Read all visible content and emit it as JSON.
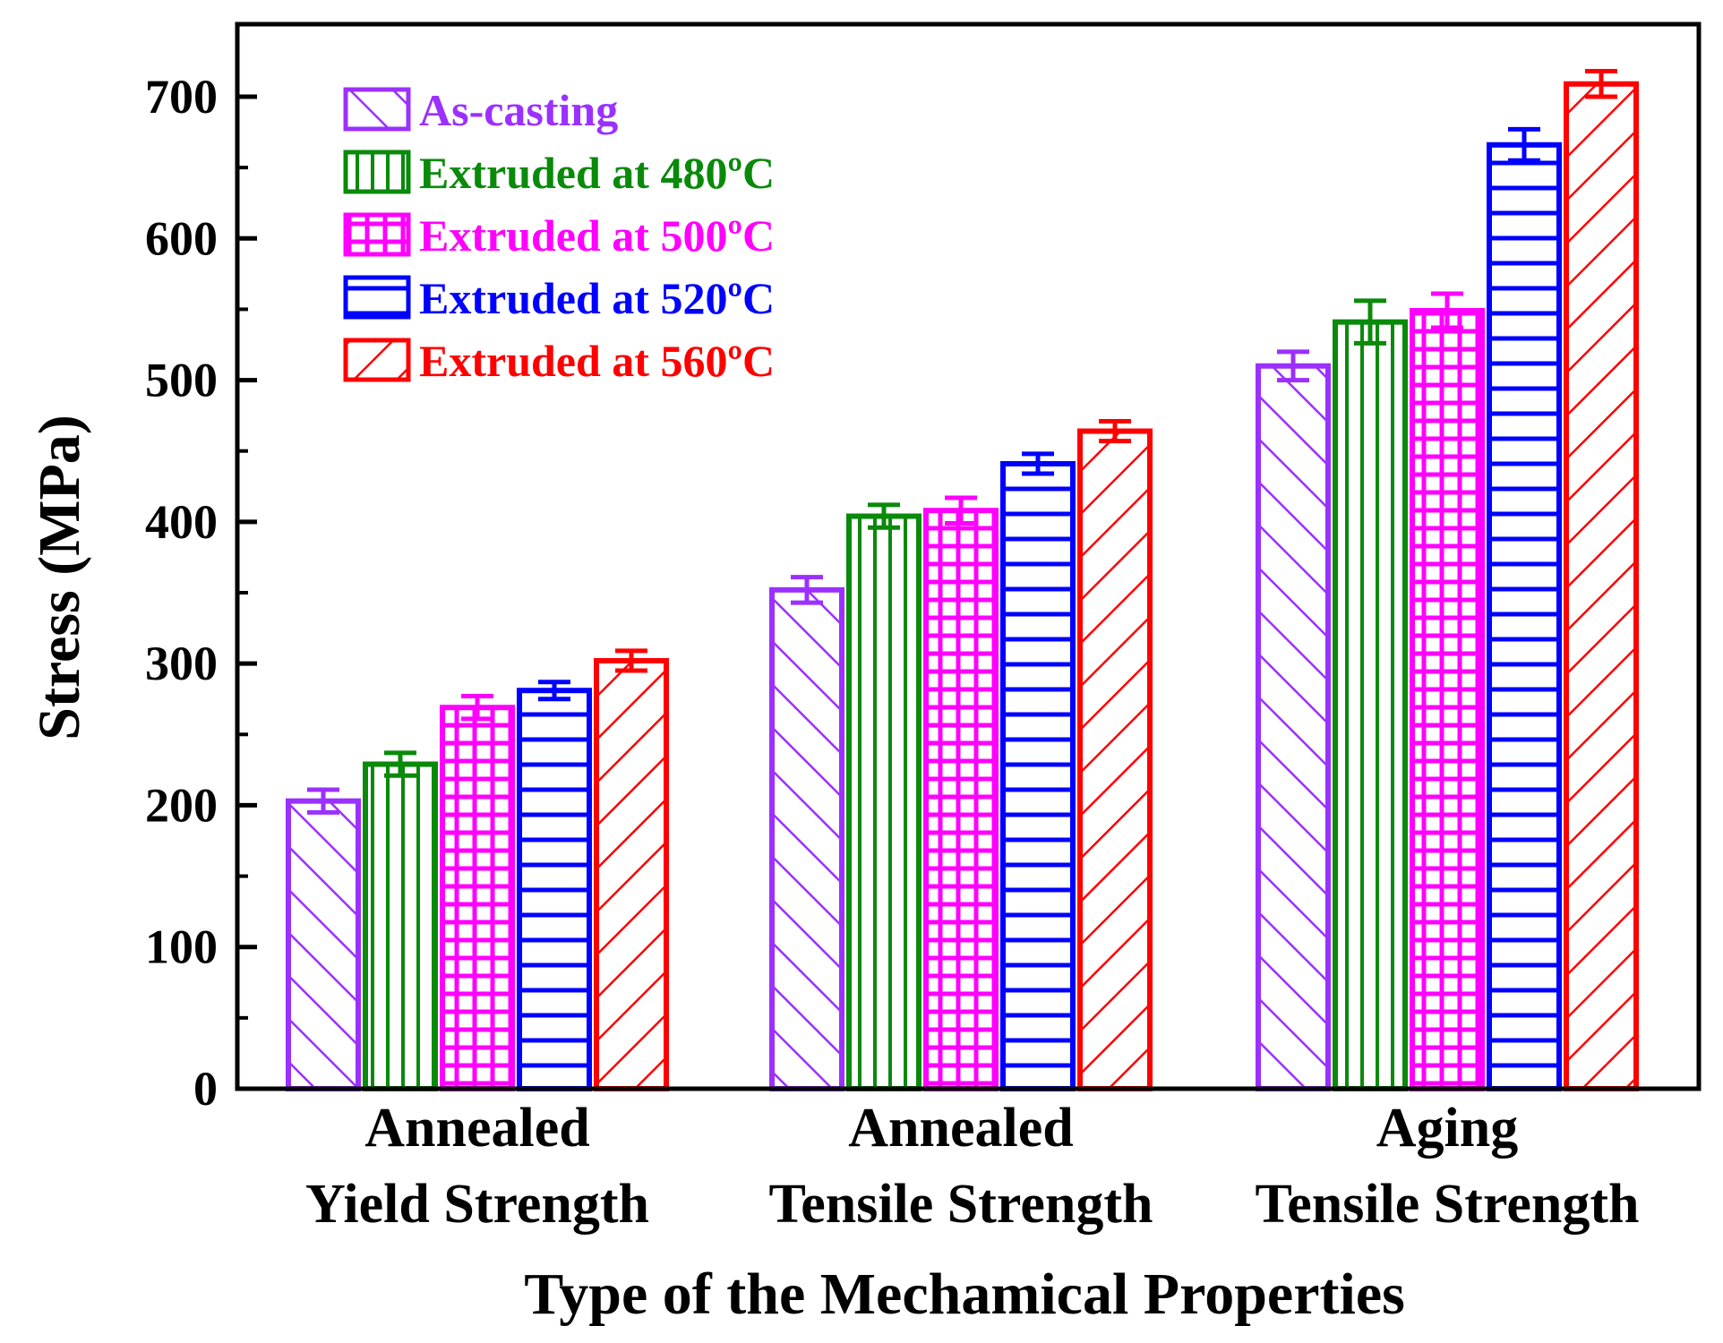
{
  "chart_data": {
    "type": "bar",
    "title": "",
    "xlabel": "Type of the Mechamical Properties",
    "ylabel": "Stress (MPa)",
    "ylim": [
      0,
      750
    ],
    "yticks": [
      0,
      100,
      200,
      300,
      400,
      500,
      600,
      700
    ],
    "ytick_labels": [
      "0",
      "100",
      "200",
      "300",
      "400",
      "500",
      "600",
      "700"
    ],
    "categories": [
      [
        "Annealed",
        "Yield Strength"
      ],
      [
        "Annealed",
        "Tensile Strength"
      ],
      [
        "Aging",
        "Tensile Strength"
      ]
    ],
    "legend_position": "top-left",
    "series": [
      {
        "name": "As-casting",
        "color": "#9b30ff",
        "pattern": "diag-up",
        "values": [
          203,
          352,
          510
        ],
        "errors": [
          8,
          9,
          10
        ]
      },
      {
        "name": "Extruded at 480ºC",
        "color": "#0a8a0a",
        "pattern": "vertical",
        "values": [
          229,
          404,
          541
        ],
        "errors": [
          8,
          8,
          15
        ]
      },
      {
        "name": "Extruded at 500ºC",
        "color": "#ff00ff",
        "pattern": "grid",
        "values": [
          269,
          408,
          549
        ],
        "errors": [
          8,
          9,
          12
        ]
      },
      {
        "name": "Extruded at 520ºC",
        "color": "#0000ff",
        "pattern": "horizontal",
        "values": [
          281,
          441,
          666
        ],
        "errors": [
          6,
          7,
          11
        ]
      },
      {
        "name": "Extruded at 560ºC",
        "color": "#ff0000",
        "pattern": "diag-down",
        "values": [
          302,
          464,
          709
        ],
        "errors": [
          7,
          7,
          9
        ]
      }
    ]
  }
}
